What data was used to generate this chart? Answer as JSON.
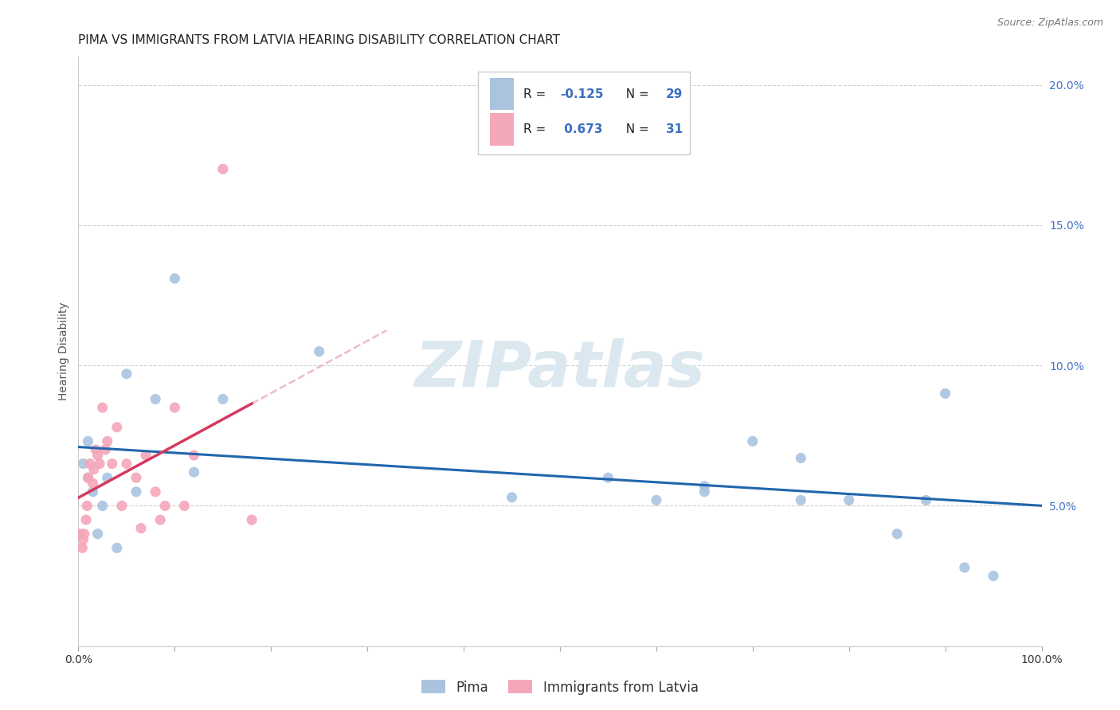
{
  "title": "PIMA VS IMMIGRANTS FROM LATVIA HEARING DISABILITY CORRELATION CHART",
  "source": "Source: ZipAtlas.com",
  "ylabel": "Hearing Disability",
  "xlim": [
    0,
    1.0
  ],
  "ylim": [
    0,
    0.21
  ],
  "xticks": [
    0.0,
    0.1,
    0.2,
    0.3,
    0.4,
    0.5,
    0.6,
    0.7,
    0.8,
    0.9,
    1.0
  ],
  "xticklabels": [
    "0.0%",
    "",
    "",
    "",
    "",
    "",
    "",
    "",
    "",
    "",
    "100.0%"
  ],
  "yticks": [
    0.0,
    0.05,
    0.1,
    0.15,
    0.2
  ],
  "yticklabels": [
    "",
    "5.0%",
    "10.0%",
    "15.0%",
    "20.0%"
  ],
  "pima_color": "#aac4e0",
  "latvia_color": "#f4a7b9",
  "pima_line_color": "#2166ac",
  "latvia_line_color": "#d6395f",
  "latvia_dash_color": "#e8aabb",
  "pima_R": "-0.125",
  "pima_N": "29",
  "latvia_R": "0.673",
  "latvia_N": "31",
  "pima_x": [
    0.005,
    0.01,
    0.01,
    0.015,
    0.02,
    0.025,
    0.03,
    0.04,
    0.05,
    0.06,
    0.08,
    0.1,
    0.12,
    0.15,
    0.25,
    0.45,
    0.55,
    0.6,
    0.65,
    0.65,
    0.7,
    0.75,
    0.75,
    0.8,
    0.85,
    0.88,
    0.9,
    0.92,
    0.95
  ],
  "pima_y": [
    0.065,
    0.06,
    0.073,
    0.055,
    0.04,
    0.05,
    0.06,
    0.035,
    0.097,
    0.055,
    0.088,
    0.131,
    0.062,
    0.088,
    0.105,
    0.053,
    0.06,
    0.052,
    0.057,
    0.055,
    0.073,
    0.067,
    0.052,
    0.052,
    0.04,
    0.052,
    0.09,
    0.028,
    0.025
  ],
  "latvia_x": [
    0.002,
    0.004,
    0.005,
    0.006,
    0.008,
    0.009,
    0.01,
    0.012,
    0.015,
    0.016,
    0.018,
    0.02,
    0.022,
    0.025,
    0.028,
    0.03,
    0.035,
    0.04,
    0.045,
    0.05,
    0.06,
    0.065,
    0.07,
    0.08,
    0.085,
    0.09,
    0.1,
    0.11,
    0.12,
    0.15,
    0.18
  ],
  "latvia_y": [
    0.04,
    0.035,
    0.038,
    0.04,
    0.045,
    0.05,
    0.06,
    0.065,
    0.058,
    0.063,
    0.07,
    0.068,
    0.065,
    0.085,
    0.07,
    0.073,
    0.065,
    0.078,
    0.05,
    0.065,
    0.06,
    0.042,
    0.068,
    0.055,
    0.045,
    0.05,
    0.085,
    0.05,
    0.068,
    0.17,
    0.045
  ],
  "watermark": "ZIPatlas",
  "background_color": "#ffffff",
  "grid_color": "#d0d0d0",
  "title_fontsize": 11,
  "axis_label_fontsize": 10,
  "tick_fontsize": 10,
  "marker_size": 90
}
